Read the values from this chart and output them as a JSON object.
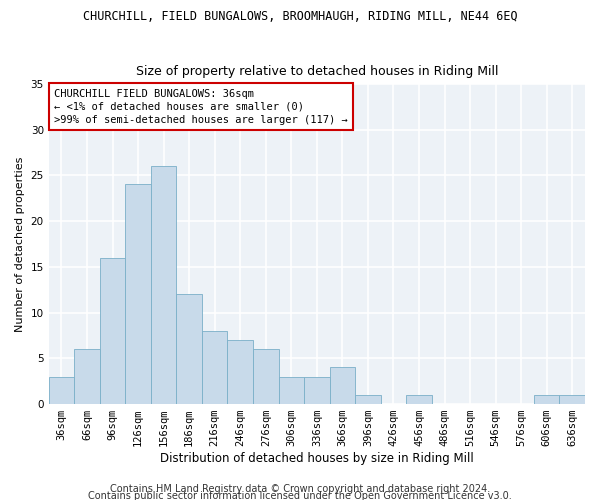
{
  "title": "CHURCHILL, FIELD BUNGALOWS, BROOMHAUGH, RIDING MILL, NE44 6EQ",
  "subtitle": "Size of property relative to detached houses in Riding Mill",
  "xlabel": "Distribution of detached houses by size in Riding Mill",
  "ylabel": "Number of detached properties",
  "bar_color": "#c8daea",
  "bar_edge_color": "#7aafc8",
  "categories": [
    "36sqm",
    "66sqm",
    "96sqm",
    "126sqm",
    "156sqm",
    "186sqm",
    "216sqm",
    "246sqm",
    "276sqm",
    "306sqm",
    "336sqm",
    "366sqm",
    "396sqm",
    "426sqm",
    "456sqm",
    "486sqm",
    "516sqm",
    "546sqm",
    "576sqm",
    "606sqm",
    "636sqm"
  ],
  "values": [
    3,
    6,
    16,
    24,
    26,
    12,
    8,
    7,
    6,
    3,
    3,
    4,
    1,
    0,
    1,
    0,
    0,
    0,
    0,
    1,
    1
  ],
  "ylim": [
    0,
    35
  ],
  "yticks": [
    0,
    5,
    10,
    15,
    20,
    25,
    30,
    35
  ],
  "annotation_box_text": "CHURCHILL FIELD BUNGALOWS: 36sqm\n← <1% of detached houses are smaller (0)\n>99% of semi-detached houses are larger (117) →",
  "box_edge_color": "#cc0000",
  "footer_line1": "Contains HM Land Registry data © Crown copyright and database right 2024.",
  "footer_line2": "Contains public sector information licensed under the Open Government Licence v3.0.",
  "background_color": "#edf2f7",
  "grid_color": "#ffffff",
  "title_fontsize": 8.5,
  "subtitle_fontsize": 9,
  "xlabel_fontsize": 8.5,
  "ylabel_fontsize": 8,
  "tick_fontsize": 7.5,
  "annotation_fontsize": 7.5,
  "footer_fontsize": 7
}
